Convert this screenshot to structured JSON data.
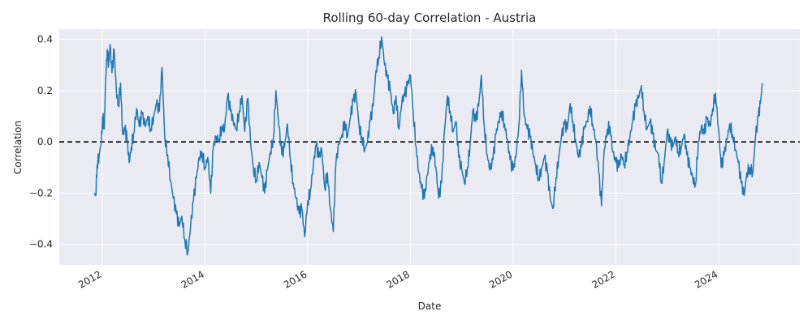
{
  "chart_data": {
    "type": "line",
    "title": "Rolling 60-day Correlation - Austria",
    "xlabel": "Date",
    "ylabel": "Correlation",
    "xlim": [
      "2011-03-01",
      "2025-08-01"
    ],
    "ylim": [
      -0.48,
      0.44
    ],
    "x_ticks": [
      "2012",
      "2014",
      "2016",
      "2018",
      "2020",
      "2022",
      "2024"
    ],
    "y_ticks": [
      -0.4,
      -0.2,
      0.0,
      0.2,
      0.4
    ],
    "y_tick_labels": [
      "−0.4",
      "−0.2",
      "0.0",
      "0.2",
      "0.4"
    ],
    "grid": true,
    "reference_line": {
      "y": 0.0,
      "style": "dashed",
      "color": "#000000"
    },
    "series": [
      {
        "color": "#1f77b4",
        "points": [
          [
            "2011-11-05",
            -0.2
          ],
          [
            "2011-11-15",
            -0.21
          ],
          [
            "2011-11-25",
            -0.09
          ],
          [
            "2011-12-10",
            -0.05
          ],
          [
            "2011-12-25",
            0.0
          ],
          [
            "2012-01-05",
            0.1
          ],
          [
            "2012-01-15",
            0.05
          ],
          [
            "2012-01-25",
            0.25
          ],
          [
            "2012-02-05",
            0.36
          ],
          [
            "2012-02-15",
            0.3
          ],
          [
            "2012-02-25",
            0.38
          ],
          [
            "2012-03-10",
            0.27
          ],
          [
            "2012-03-25",
            0.36
          ],
          [
            "2012-04-10",
            0.2
          ],
          [
            "2012-04-25",
            0.14
          ],
          [
            "2012-05-10",
            0.23
          ],
          [
            "2012-05-25",
            0.03
          ],
          [
            "2012-06-10",
            0.05
          ],
          [
            "2012-06-25",
            0.01
          ],
          [
            "2012-07-10",
            -0.08
          ],
          [
            "2012-07-25",
            -0.02
          ],
          [
            "2012-08-10",
            0.03
          ],
          [
            "2012-09-01",
            0.13
          ],
          [
            "2012-09-20",
            0.06
          ],
          [
            "2012-10-10",
            0.11
          ],
          [
            "2012-11-01",
            0.06
          ],
          [
            "2012-11-20",
            0.1
          ],
          [
            "2012-12-10",
            0.05
          ],
          [
            "2013-01-01",
            0.1
          ],
          [
            "2013-01-20",
            0.15
          ],
          [
            "2013-02-10",
            0.12
          ],
          [
            "2013-03-01",
            0.29
          ],
          [
            "2013-03-20",
            0.02
          ],
          [
            "2013-04-10",
            -0.05
          ],
          [
            "2013-05-01",
            -0.15
          ],
          [
            "2013-05-20",
            -0.22
          ],
          [
            "2013-06-10",
            -0.28
          ],
          [
            "2013-07-01",
            -0.33
          ],
          [
            "2013-07-20",
            -0.29
          ],
          [
            "2013-08-10",
            -0.38
          ],
          [
            "2013-09-01",
            -0.43
          ],
          [
            "2013-09-20",
            -0.33
          ],
          [
            "2013-10-10",
            -0.23
          ],
          [
            "2013-11-01",
            -0.14
          ],
          [
            "2013-11-20",
            -0.06
          ],
          [
            "2013-12-10",
            -0.04
          ],
          [
            "2014-01-01",
            -0.1
          ],
          [
            "2014-01-20",
            -0.06
          ],
          [
            "2014-02-10",
            -0.2
          ],
          [
            "2014-03-01",
            -0.02
          ],
          [
            "2014-03-20",
            0.02
          ],
          [
            "2014-04-10",
            0.01
          ],
          [
            "2014-05-01",
            0.06
          ],
          [
            "2014-05-20",
            0.05
          ],
          [
            "2014-06-10",
            0.18
          ],
          [
            "2014-07-01",
            0.12
          ],
          [
            "2014-07-20",
            0.08
          ],
          [
            "2014-08-10",
            0.05
          ],
          [
            "2014-09-01",
            0.12
          ],
          [
            "2014-09-20",
            0.18
          ],
          [
            "2014-10-10",
            0.04
          ],
          [
            "2014-11-01",
            0.17
          ],
          [
            "2014-11-20",
            0.0
          ],
          [
            "2014-12-10",
            -0.1
          ],
          [
            "2015-01-01",
            -0.15
          ],
          [
            "2015-01-20",
            -0.08
          ],
          [
            "2015-02-10",
            -0.14
          ],
          [
            "2015-03-01",
            -0.2
          ],
          [
            "2015-03-20",
            -0.11
          ],
          [
            "2015-04-10",
            -0.04
          ],
          [
            "2015-05-01",
            0.01
          ],
          [
            "2015-05-20",
            0.2
          ],
          [
            "2015-06-10",
            0.06
          ],
          [
            "2015-07-01",
            -0.05
          ],
          [
            "2015-07-20",
            -0.02
          ],
          [
            "2015-08-10",
            0.07
          ],
          [
            "2015-09-01",
            -0.07
          ],
          [
            "2015-09-20",
            -0.16
          ],
          [
            "2015-10-10",
            -0.22
          ],
          [
            "2015-11-01",
            -0.28
          ],
          [
            "2015-11-20",
            -0.26
          ],
          [
            "2015-12-10",
            -0.37
          ],
          [
            "2016-01-01",
            -0.23
          ],
          [
            "2016-01-20",
            -0.19
          ],
          [
            "2016-02-10",
            -0.09
          ],
          [
            "2016-03-01",
            -0.01
          ],
          [
            "2016-03-20",
            -0.06
          ],
          [
            "2016-04-10",
            -0.03
          ],
          [
            "2016-05-01",
            -0.18
          ],
          [
            "2016-05-20",
            -0.12
          ],
          [
            "2016-06-10",
            -0.26
          ],
          [
            "2016-07-01",
            -0.35
          ],
          [
            "2016-07-20",
            -0.08
          ],
          [
            "2016-08-10",
            -0.01
          ],
          [
            "2016-09-01",
            0.03
          ],
          [
            "2016-09-20",
            0.08
          ],
          [
            "2016-10-10",
            0.02
          ],
          [
            "2016-11-01",
            0.1
          ],
          [
            "2016-11-20",
            0.16
          ],
          [
            "2016-12-10",
            0.19
          ],
          [
            "2017-01-01",
            0.06
          ],
          [
            "2017-01-20",
            0.02
          ],
          [
            "2017-02-10",
            -0.03
          ],
          [
            "2017-03-01",
            0.0
          ],
          [
            "2017-03-20",
            0.08
          ],
          [
            "2017-04-10",
            0.14
          ],
          [
            "2017-05-01",
            0.28
          ],
          [
            "2017-05-20",
            0.33
          ],
          [
            "2017-06-10",
            0.41
          ],
          [
            "2017-07-01",
            0.3
          ],
          [
            "2017-07-20",
            0.25
          ],
          [
            "2017-08-10",
            0.2
          ],
          [
            "2017-09-01",
            0.11
          ],
          [
            "2017-09-20",
            0.18
          ],
          [
            "2017-10-10",
            0.05
          ],
          [
            "2017-11-01",
            0.16
          ],
          [
            "2017-11-20",
            0.18
          ],
          [
            "2017-12-10",
            0.22
          ],
          [
            "2018-01-01",
            0.26
          ],
          [
            "2018-01-20",
            0.12
          ],
          [
            "2018-02-10",
            -0.02
          ],
          [
            "2018-03-01",
            -0.12
          ],
          [
            "2018-03-20",
            -0.18
          ],
          [
            "2018-04-10",
            -0.22
          ],
          [
            "2018-05-01",
            -0.13
          ],
          [
            "2018-05-20",
            -0.05
          ],
          [
            "2018-06-10",
            -0.02
          ],
          [
            "2018-07-01",
            -0.1
          ],
          [
            "2018-07-20",
            -0.22
          ],
          [
            "2018-08-10",
            -0.16
          ],
          [
            "2018-09-01",
            0.05
          ],
          [
            "2018-09-20",
            0.18
          ],
          [
            "2018-10-10",
            0.12
          ],
          [
            "2018-11-01",
            0.04
          ],
          [
            "2018-11-20",
            0.08
          ],
          [
            "2018-12-10",
            -0.06
          ],
          [
            "2019-01-01",
            -0.11
          ],
          [
            "2019-01-20",
            -0.16
          ],
          [
            "2019-02-10",
            -0.1
          ],
          [
            "2019-03-01",
            -0.01
          ],
          [
            "2019-03-20",
            0.12
          ],
          [
            "2019-04-10",
            0.08
          ],
          [
            "2019-05-01",
            0.14
          ],
          [
            "2019-05-20",
            0.26
          ],
          [
            "2019-06-10",
            0.06
          ],
          [
            "2019-07-01",
            -0.05
          ],
          [
            "2019-07-20",
            -0.11
          ],
          [
            "2019-08-10",
            -0.07
          ],
          [
            "2019-09-01",
            0.03
          ],
          [
            "2019-09-20",
            0.08
          ],
          [
            "2019-10-10",
            0.12
          ],
          [
            "2019-11-01",
            0.07
          ],
          [
            "2019-11-20",
            0.01
          ],
          [
            "2019-12-10",
            -0.07
          ],
          [
            "2020-01-01",
            -0.11
          ],
          [
            "2020-01-20",
            -0.06
          ],
          [
            "2020-02-10",
            0.06
          ],
          [
            "2020-03-01",
            0.28
          ],
          [
            "2020-03-20",
            0.1
          ],
          [
            "2020-04-10",
            0.05
          ],
          [
            "2020-05-01",
            0.02
          ],
          [
            "2020-05-20",
            -0.04
          ],
          [
            "2020-06-10",
            -0.09
          ],
          [
            "2020-07-01",
            -0.14
          ],
          [
            "2020-07-20",
            -0.11
          ],
          [
            "2020-08-10",
            -0.06
          ],
          [
            "2020-09-01",
            -0.12
          ],
          [
            "2020-09-20",
            -0.22
          ],
          [
            "2020-10-10",
            -0.26
          ],
          [
            "2020-11-01",
            -0.14
          ],
          [
            "2020-11-20",
            -0.06
          ],
          [
            "2020-12-10",
            0.02
          ],
          [
            "2021-01-01",
            0.07
          ],
          [
            "2021-01-20",
            0.05
          ],
          [
            "2021-02-10",
            0.15
          ],
          [
            "2021-03-01",
            0.08
          ],
          [
            "2021-03-20",
            0.01
          ],
          [
            "2021-04-10",
            -0.06
          ],
          [
            "2021-05-01",
            -0.02
          ],
          [
            "2021-05-20",
            0.05
          ],
          [
            "2021-06-10",
            0.08
          ],
          [
            "2021-07-01",
            0.14
          ],
          [
            "2021-07-20",
            0.07
          ],
          [
            "2021-08-10",
            0.01
          ],
          [
            "2021-09-01",
            -0.12
          ],
          [
            "2021-09-20",
            -0.25
          ],
          [
            "2021-10-10",
            -0.03
          ],
          [
            "2021-11-01",
            0.05
          ],
          [
            "2021-11-20",
            0.06
          ],
          [
            "2021-12-10",
            -0.04
          ],
          [
            "2022-01-01",
            -0.08
          ],
          [
            "2022-01-20",
            -0.1
          ],
          [
            "2022-02-10",
            -0.05
          ],
          [
            "2022-03-01",
            -0.09
          ],
          [
            "2022-03-20",
            -0.04
          ],
          [
            "2022-04-10",
            0.02
          ],
          [
            "2022-05-01",
            0.08
          ],
          [
            "2022-05-20",
            0.14
          ],
          [
            "2022-06-10",
            0.17
          ],
          [
            "2022-07-01",
            0.22
          ],
          [
            "2022-07-20",
            0.12
          ],
          [
            "2022-08-10",
            0.05
          ],
          [
            "2022-09-01",
            0.08
          ],
          [
            "2022-09-20",
            0.03
          ],
          [
            "2022-10-10",
            -0.03
          ],
          [
            "2022-11-01",
            -0.05
          ],
          [
            "2022-11-20",
            -0.16
          ],
          [
            "2022-12-10",
            -0.08
          ],
          [
            "2023-01-01",
            0.04
          ],
          [
            "2023-01-20",
            0.0
          ],
          [
            "2023-02-10",
            -0.02
          ],
          [
            "2023-03-01",
            0.02
          ],
          [
            "2023-03-20",
            -0.04
          ],
          [
            "2023-04-10",
            -0.02
          ],
          [
            "2023-05-01",
            0.03
          ],
          [
            "2023-05-20",
            -0.05
          ],
          [
            "2023-06-10",
            -0.1
          ],
          [
            "2023-07-01",
            -0.14
          ],
          [
            "2023-07-20",
            -0.17
          ],
          [
            "2023-08-10",
            0.0
          ],
          [
            "2023-09-01",
            0.06
          ],
          [
            "2023-09-20",
            0.03
          ],
          [
            "2023-10-10",
            0.09
          ],
          [
            "2023-11-01",
            0.06
          ],
          [
            "2023-11-20",
            0.13
          ],
          [
            "2023-12-10",
            0.19
          ],
          [
            "2024-01-01",
            0.05
          ],
          [
            "2024-01-20",
            -0.1
          ],
          [
            "2024-02-10",
            -0.05
          ],
          [
            "2024-03-01",
            0.01
          ],
          [
            "2024-03-20",
            0.07
          ],
          [
            "2024-04-10",
            0.03
          ],
          [
            "2024-05-01",
            -0.03
          ],
          [
            "2024-05-20",
            -0.08
          ],
          [
            "2024-06-10",
            -0.16
          ],
          [
            "2024-07-01",
            -0.21
          ],
          [
            "2024-07-20",
            -0.12
          ],
          [
            "2024-08-10",
            -0.1
          ],
          [
            "2024-09-01",
            -0.12
          ],
          [
            "2024-09-20",
            0.02
          ],
          [
            "2024-10-10",
            0.1
          ],
          [
            "2024-10-25",
            0.15
          ],
          [
            "2024-11-08",
            0.23
          ]
        ]
      }
    ]
  }
}
